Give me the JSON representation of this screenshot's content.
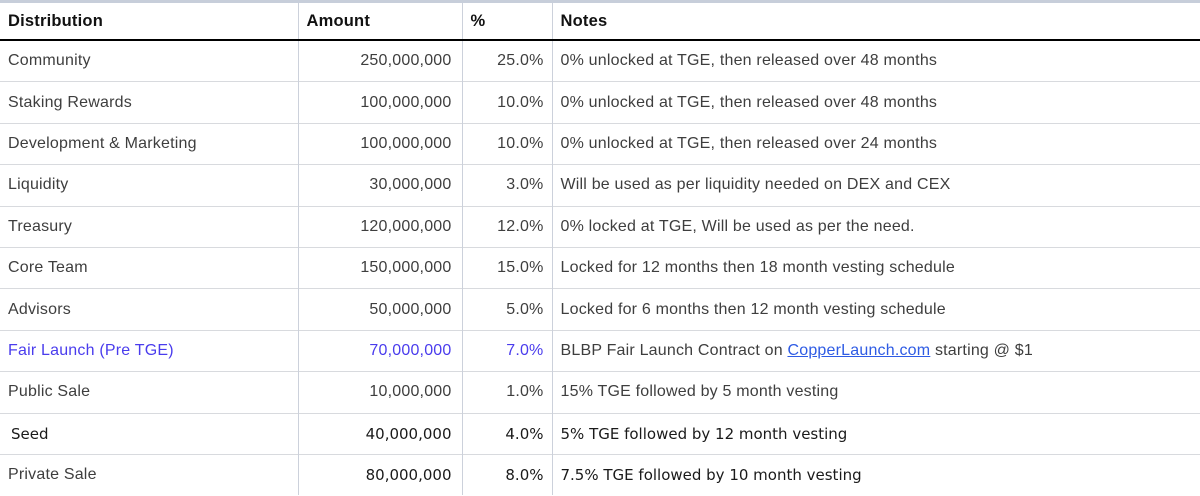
{
  "header": {
    "columns": [
      "Distribution",
      "Amount",
      "%",
      "Notes"
    ]
  },
  "rows": [
    {
      "distribution": "Community",
      "amount": "250,000,000",
      "percent": "25.0%",
      "note": "0% unlocked at TGE, then released over 48 months"
    },
    {
      "distribution": "Staking Rewards",
      "amount": "100,000,000",
      "percent": "10.0%",
      "note": "0% unlocked at TGE, then released over 48 months"
    },
    {
      "distribution": "Development & Marketing",
      "amount": "100,000,000",
      "percent": "10.0%",
      "note": "0% unlocked at TGE, then released over 24 months"
    },
    {
      "distribution": "Liquidity",
      "amount": "30,000,000",
      "percent": "3.0%",
      "note": "Will be used as per liquidity needed on DEX and CEX"
    },
    {
      "distribution": "Treasury",
      "amount": "120,000,000",
      "percent": "12.0%",
      "note": "0% locked at TGE, Will be used as per the need."
    },
    {
      "distribution": "Core Team",
      "amount": "150,000,000",
      "percent": "15.0%",
      "note": "Locked for 12 months then 18 month vesting schedule"
    },
    {
      "distribution": "Advisors",
      "amount": "50,000,000",
      "percent": "5.0%",
      "note": "Locked for 6 months then 12 month vesting schedule"
    },
    {
      "distribution": "Fair Launch (Pre TGE)",
      "amount": "70,000,000",
      "percent": "7.0%",
      "note_prefix": "BLBP Fair Launch Contract on ",
      "note_link": "CopperLaunch.com",
      "note_suffix": " starting @ $1"
    },
    {
      "distribution": "Public Sale",
      "amount": "10,000,000",
      "percent": "1.0%",
      "note": "15% TGE followed by 5 month vesting"
    },
    {
      "distribution": "Seed",
      "amount": "40,000,000",
      "percent": "4.0%",
      "note": "5% TGE followed by 12 month vesting"
    },
    {
      "distribution": "Private Sale",
      "amount": "80,000,000",
      "percent": "8.0%",
      "note": "7.5% TGE followed by 10 month vesting"
    }
  ],
  "colors": {
    "highlight_row_blue": "#4a3ced",
    "link_blue": "#2e5be4"
  }
}
